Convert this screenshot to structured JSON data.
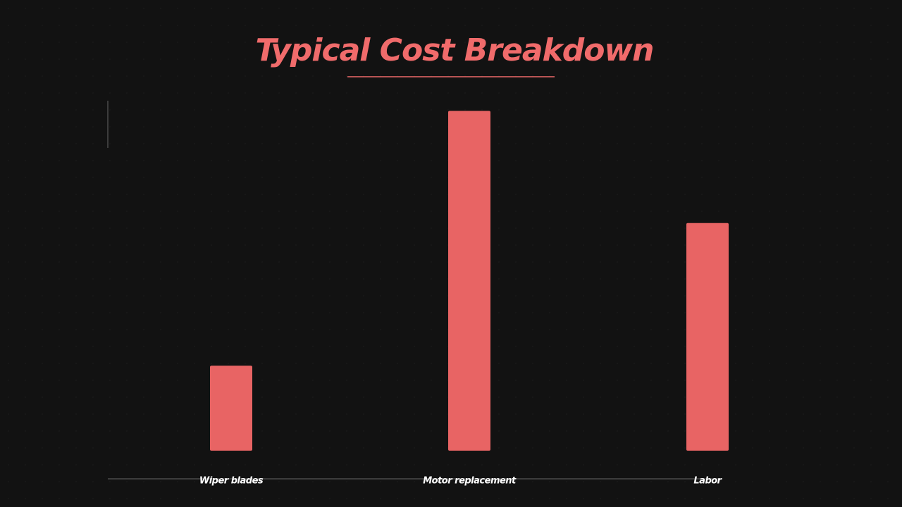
{
  "chart_data": {
    "type": "bar",
    "title": "Typical Cost Breakdown",
    "categories": [
      "Wiper blades",
      "Motor replacement",
      "Labor"
    ],
    "values": [
      25,
      100,
      67
    ],
    "color": "#e86464",
    "ylim": [
      0,
      103
    ]
  }
}
